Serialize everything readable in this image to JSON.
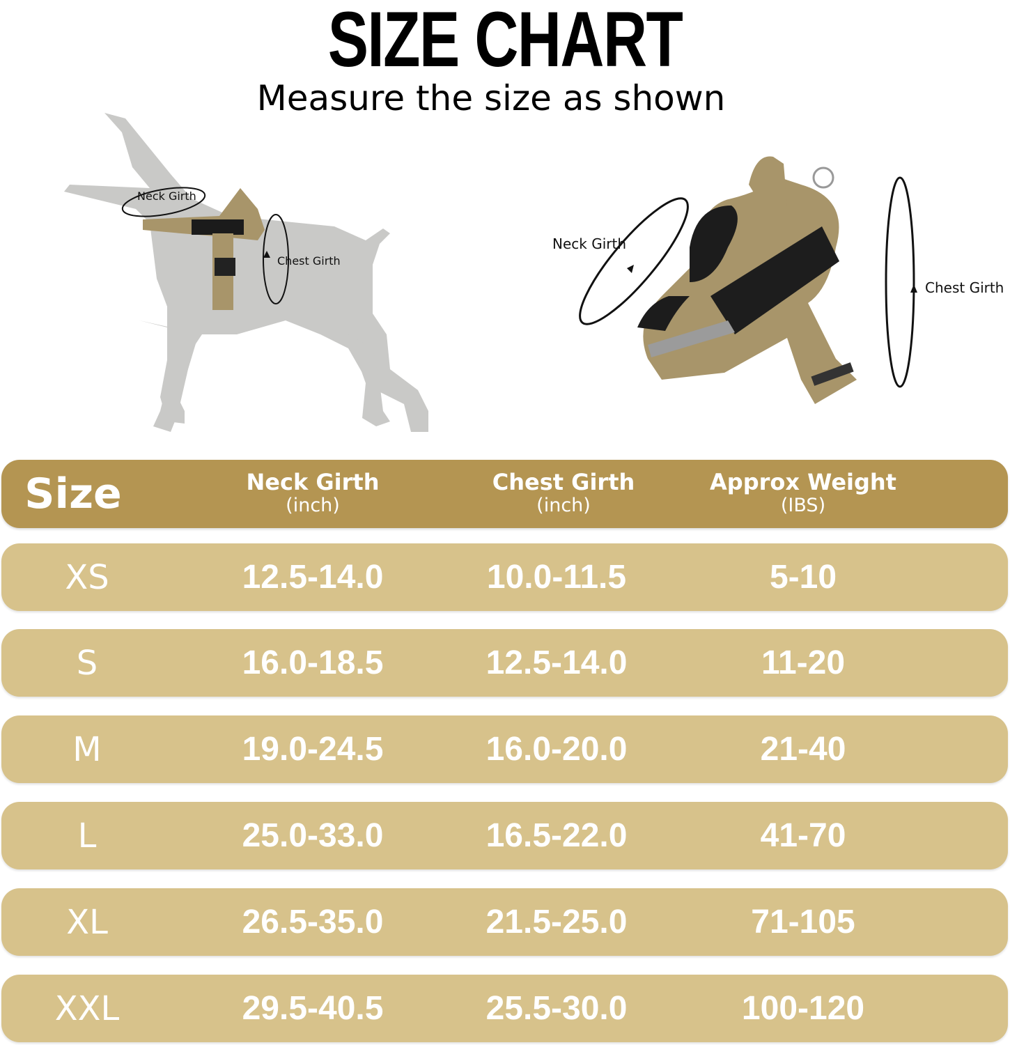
{
  "header": {
    "title": "SIZE CHART",
    "subtitle": "Measure the size as shown"
  },
  "illustrations": {
    "dog_neck_label": "Neck Girth",
    "dog_chest_label": "Chest Girth",
    "harness_neck_label": "Neck Girth",
    "harness_chest_label": "Chest Girth"
  },
  "colors": {
    "header_row": "#b49552",
    "data_row": "#d7c28b",
    "text": "#ffffff",
    "dog_silhouette": "#c9c9c7",
    "harness": "#a8956a"
  },
  "table": {
    "columns": [
      {
        "label": "Size",
        "unit": ""
      },
      {
        "label": "Neck Girth",
        "unit": "(inch)"
      },
      {
        "label": "Chest Girth",
        "unit": "(inch)"
      },
      {
        "label": "Approx Weight",
        "unit": "(IBS)"
      }
    ],
    "rows": [
      {
        "size": "XS",
        "neck": "12.5-14.0",
        "chest": "10.0-11.5",
        "weight": "5-10"
      },
      {
        "size": "S",
        "neck": "16.0-18.5",
        "chest": "12.5-14.0",
        "weight": "11-20"
      },
      {
        "size": "M",
        "neck": "19.0-24.5",
        "chest": "16.0-20.0",
        "weight": "21-40"
      },
      {
        "size": "L",
        "neck": "25.0-33.0",
        "chest": "16.5-22.0",
        "weight": "41-70"
      },
      {
        "size": "XL",
        "neck": "26.5-35.0",
        "chest": "21.5-25.0",
        "weight": "71-105"
      },
      {
        "size": "XXL",
        "neck": "29.5-40.5",
        "chest": "25.5-30.0",
        "weight": "100-120"
      }
    ]
  }
}
